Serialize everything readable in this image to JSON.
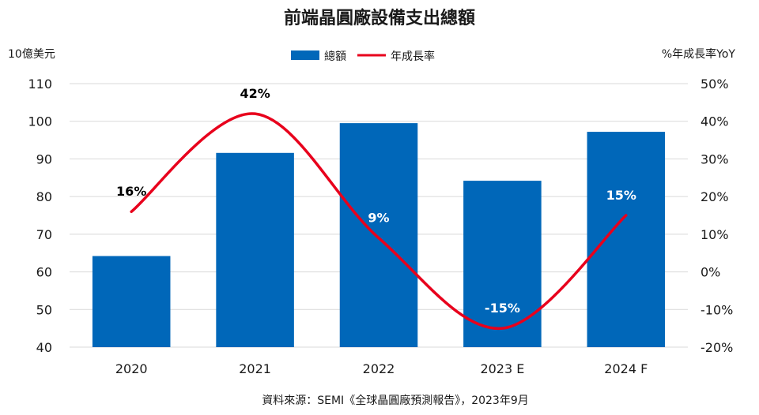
{
  "source": "資料來源：SEMI《全球晶圓廠預測報告》，2023年9月",
  "chart_data": {
    "type": "bar",
    "title": "前端晶圓廠設備支出總額",
    "ylabel": "10億美元",
    "y2label": "%年成長率YoY",
    "categories": [
      "2020",
      "2021",
      "2022",
      "2023 E",
      "2024 F"
    ],
    "ylim": [
      40,
      110
    ],
    "y2lim": [
      -20,
      50
    ],
    "yticks": [
      110,
      100,
      90,
      80,
      70,
      60,
      50,
      40
    ],
    "y2ticks": [
      "50%",
      "40%",
      "30%",
      "20%",
      "10%",
      "0%",
      "-10%",
      "-20%"
    ],
    "grid": true,
    "legend": "top-center",
    "series": [
      {
        "name": "總額",
        "type": "bar",
        "axis": "left",
        "color": "#0067B9",
        "values": [
          64.2,
          91.6,
          99.5,
          84.2,
          97.2
        ]
      },
      {
        "name": "年成長率",
        "type": "line",
        "axis": "right",
        "color": "#E8001C",
        "values": [
          16,
          42,
          9,
          -15,
          15
        ],
        "labels": [
          "16%",
          "42%",
          "9%",
          "-15%",
          "15%"
        ],
        "label_colors": [
          "#000000",
          "#000000",
          "#FFFFFF",
          "#FFFFFF",
          "#FFFFFF"
        ]
      }
    ]
  }
}
